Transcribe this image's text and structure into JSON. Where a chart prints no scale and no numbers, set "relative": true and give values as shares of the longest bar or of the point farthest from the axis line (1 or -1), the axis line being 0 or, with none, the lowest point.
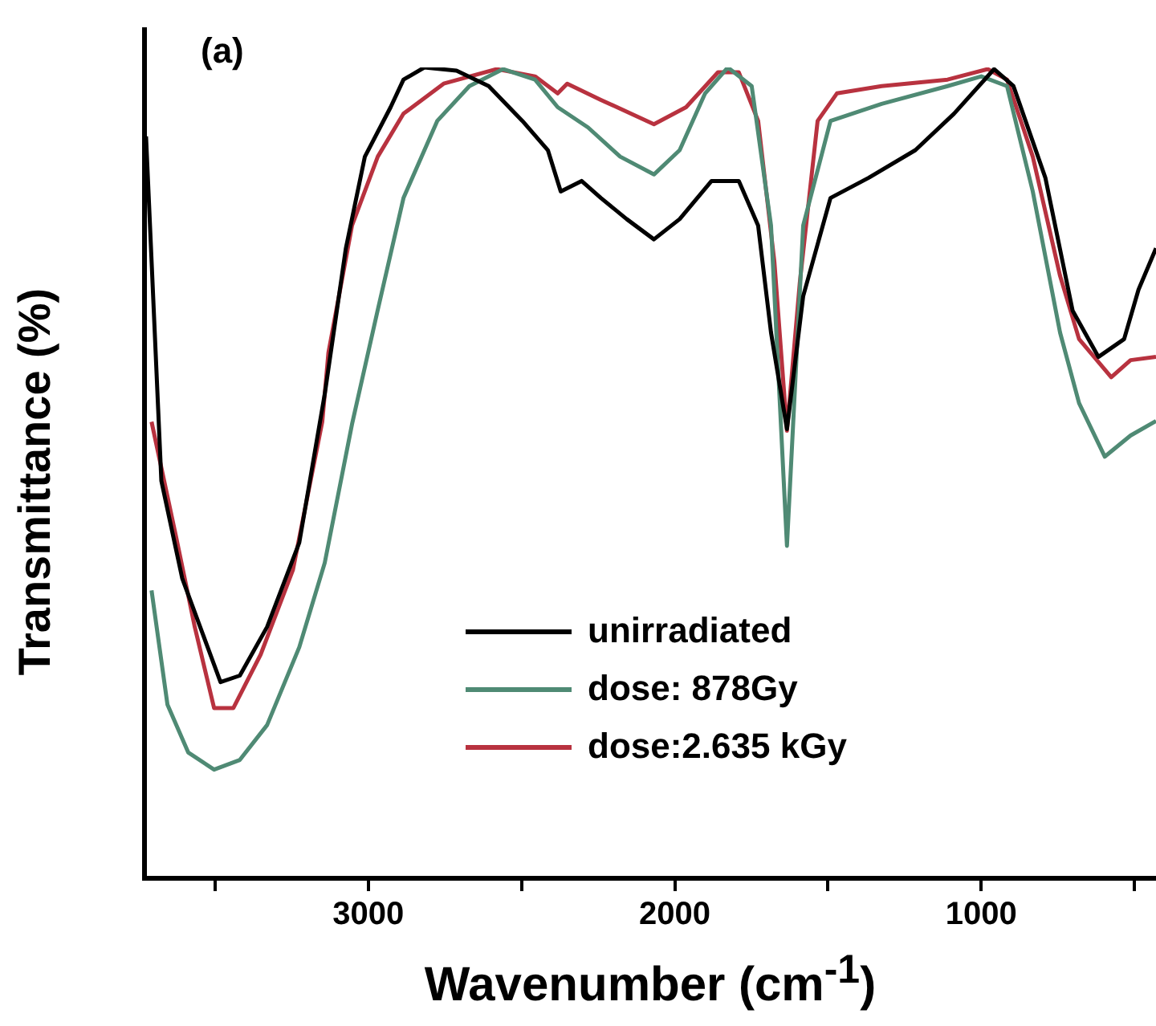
{
  "chart_data": {
    "type": "line",
    "xlabel": "Wavenumber (cm$^{-1}$)",
    "ylabel": "Transmittance (%)",
    "annotations": [
      "(a)"
    ],
    "relative": true,
    "xlim": [
      3730,
      430
    ],
    "xticks": [
      {
        "value": 3500,
        "label": null
      },
      3000,
      {
        "value": 2500,
        "label": null
      },
      2000,
      {
        "value": 1500,
        "label": null
      },
      1000,
      {
        "value": 500,
        "label": null
      }
    ],
    "grid": false,
    "legend": "bottom",
    "marker": "none",
    "line_style": "solid",
    "series": [
      {
        "name": "unirradiated",
        "color": "#000000",
        "x": [
          3725,
          3675,
          3607,
          3482,
          3419,
          3330,
          3225,
          3142,
          3073,
          3011,
          2927,
          2885,
          2817,
          2712,
          2607,
          2497,
          2414,
          2372,
          2304,
          2241,
          2157,
          2068,
          1984,
          1880,
          1791,
          1728,
          1686,
          1634,
          1581,
          1492,
          1367,
          1215,
          1089,
          958,
          895,
          791,
          702,
          618,
          534,
          487,
          430
        ],
        "values": [
          0.915,
          0.49,
          0.37,
          0.242,
          0.25,
          0.31,
          0.414,
          0.597,
          0.777,
          0.89,
          0.951,
          0.985,
          1.0,
          0.996,
          0.977,
          0.934,
          0.898,
          0.847,
          0.86,
          0.839,
          0.813,
          0.788,
          0.813,
          0.86,
          0.86,
          0.805,
          0.673,
          0.554,
          0.718,
          0.839,
          0.864,
          0.898,
          0.943,
          0.998,
          0.977,
          0.864,
          0.7,
          0.643,
          0.665,
          0.726,
          0.777
        ]
      },
      {
        "name": "dose: 878Gy",
        "color": "#4f8a74",
        "x": [
          3707,
          3655,
          3587,
          3503,
          3419,
          3330,
          3225,
          3142,
          3053,
          2969,
          2885,
          2775,
          2670,
          2560,
          2456,
          2382,
          2283,
          2178,
          2068,
          1984,
          1901,
          1827,
          1749,
          1686,
          1634,
          1581,
          1492,
          1325,
          1110,
          1000,
          916,
          832,
          743,
          681,
          597,
          513,
          430
        ],
        "values": [
          0.355,
          0.214,
          0.155,
          0.134,
          0.146,
          0.189,
          0.285,
          0.389,
          0.56,
          0.701,
          0.839,
          0.934,
          0.977,
          0.998,
          0.985,
          0.951,
          0.926,
          0.89,
          0.868,
          0.898,
          0.968,
          1.0,
          0.977,
          0.805,
          0.41,
          0.805,
          0.934,
          0.955,
          0.977,
          0.989,
          0.977,
          0.847,
          0.673,
          0.586,
          0.52,
          0.546,
          0.564
        ]
      },
      {
        "name": "dose:2.635 kGy",
        "color": "#b8323f",
        "x": [
          3707,
          3628,
          3566,
          3503,
          3440,
          3351,
          3246,
          3150,
          3130,
          3053,
          2969,
          2885,
          2754,
          2581,
          2456,
          2382,
          2351,
          2241,
          2068,
          1963,
          1859,
          1791,
          1728,
          1675,
          1634,
          1592,
          1534,
          1471,
          1325,
          1110,
          979,
          916,
          832,
          743,
          681,
          576,
          513,
          430
        ],
        "values": [
          0.563,
          0.423,
          0.31,
          0.21,
          0.21,
          0.276,
          0.38,
          0.563,
          0.648,
          0.805,
          0.89,
          0.943,
          0.98,
          0.998,
          0.989,
          0.968,
          0.98,
          0.96,
          0.93,
          0.951,
          0.994,
          0.994,
          0.934,
          0.76,
          0.552,
          0.735,
          0.934,
          0.968,
          0.977,
          0.985,
          0.998,
          0.985,
          0.89,
          0.743,
          0.665,
          0.618,
          0.639,
          0.643
        ]
      }
    ]
  }
}
